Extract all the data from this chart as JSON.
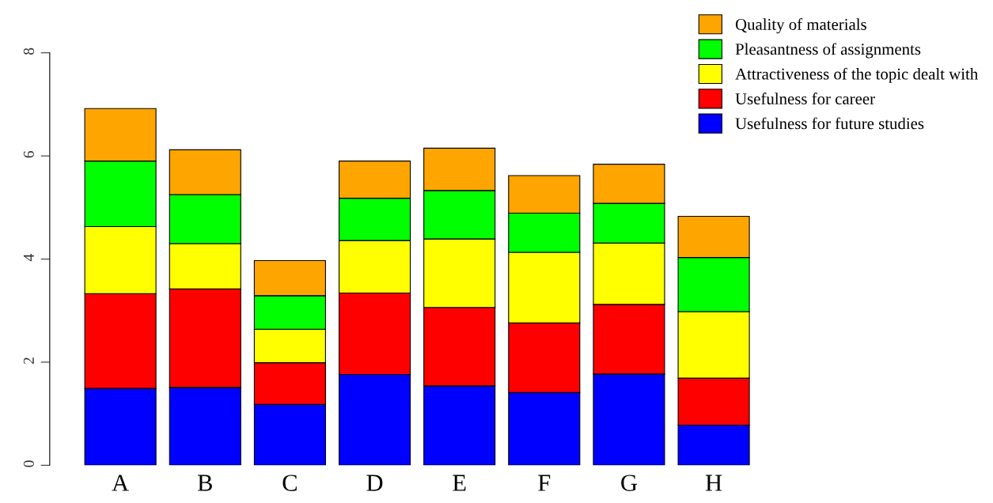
{
  "chart_data": {
    "type": "bar",
    "stacked": true,
    "categories": [
      "A",
      "B",
      "C",
      "D",
      "E",
      "F",
      "G",
      "H"
    ],
    "series": [
      {
        "name": "Usefulness for future studies",
        "color": "#0000ff",
        "values": [
          1.49,
          1.51,
          1.18,
          1.76,
          1.54,
          1.41,
          1.77,
          0.78
        ]
      },
      {
        "name": "Usefulness for career",
        "color": "#ff0000",
        "values": [
          1.84,
          1.91,
          0.81,
          1.58,
          1.52,
          1.35,
          1.35,
          0.91
        ]
      },
      {
        "name": "Attractiveness of the topic dealt with",
        "color": "#ffff00",
        "values": [
          1.3,
          0.88,
          0.65,
          1.02,
          1.33,
          1.37,
          1.19,
          1.29
        ]
      },
      {
        "name": "Pleasantness of assignments",
        "color": "#00ff00",
        "values": [
          1.27,
          0.95,
          0.65,
          0.82,
          0.94,
          0.76,
          0.77,
          1.05
        ]
      },
      {
        "name": "Quality of materials",
        "color": "#ffa500",
        "values": [
          1.02,
          0.87,
          0.68,
          0.72,
          0.82,
          0.73,
          0.76,
          0.8
        ]
      }
    ],
    "ylim": [
      0,
      8
    ],
    "yticks": [
      0,
      2,
      4,
      6,
      8
    ],
    "grid": false,
    "legend": "top right"
  }
}
